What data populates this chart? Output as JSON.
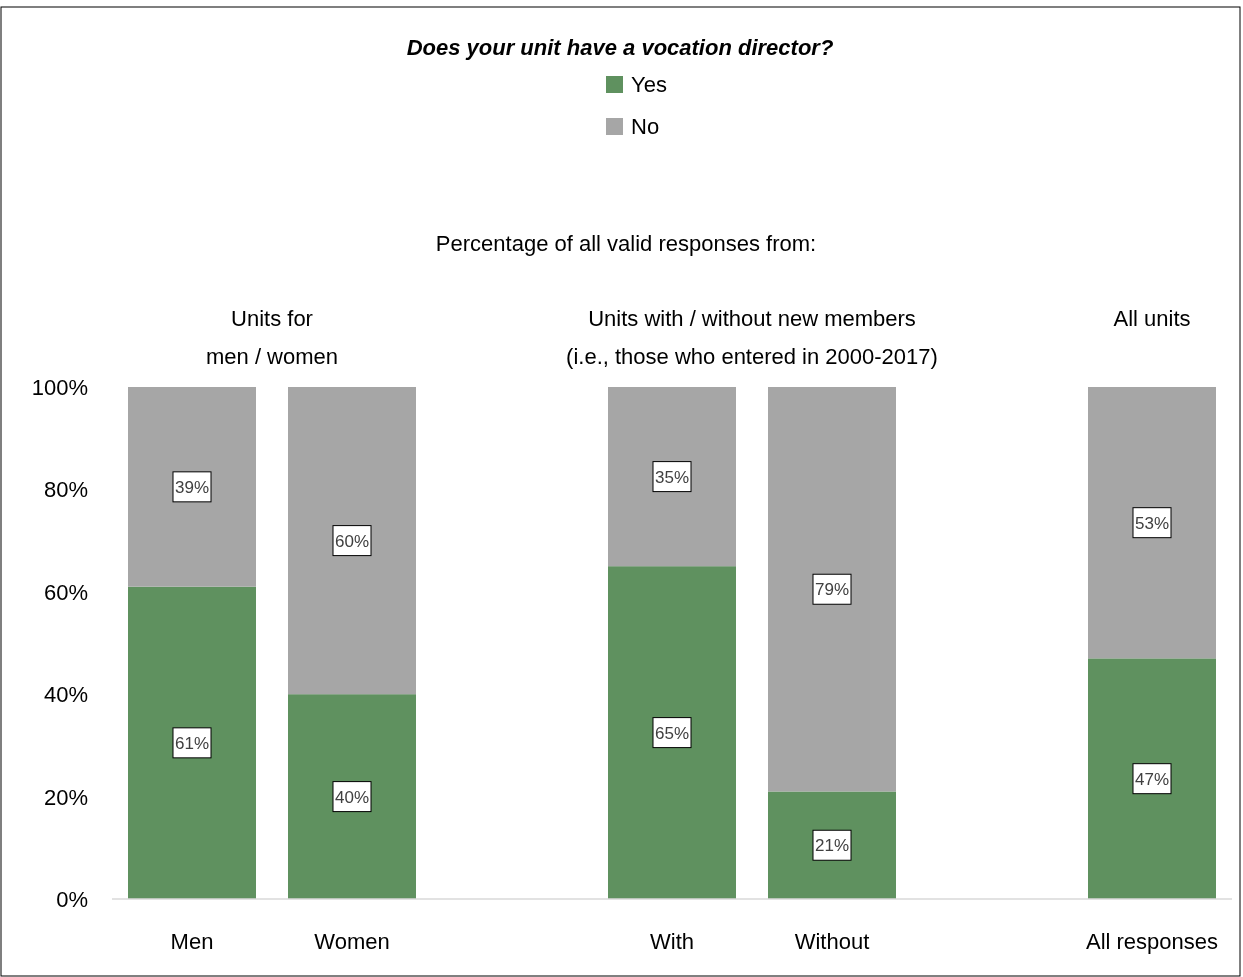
{
  "chart_data": {
    "type": "bar",
    "stacked": true,
    "title": "Does your unit have a vocation director?",
    "subtitle": "Percentage of all valid responses from:",
    "annotations": [
      "Units for\nmen / women",
      "Units with / without new members\n(i.e., those who entered in 2000-2017)",
      "All units"
    ],
    "categories": [
      "Men",
      "Women",
      null,
      "With",
      "Without",
      null,
      "All responses"
    ],
    "series": [
      {
        "name": "Yes",
        "color": "#5f915f",
        "values": [
          61,
          40,
          null,
          65,
          21,
          null,
          47
        ],
        "value_labels": [
          "61%",
          "40%",
          null,
          "65%",
          "21%",
          null,
          "47%"
        ]
      },
      {
        "name": "No",
        "color": "#a6a6a6",
        "values": [
          39,
          60,
          null,
          35,
          79,
          null,
          53
        ],
        "value_labels": [
          "39%",
          "60%",
          null,
          "35%",
          "79%",
          null,
          "53%"
        ]
      }
    ],
    "ylim": [
      0,
      100
    ],
    "yticks": [
      {
        "value": 0,
        "label": "0%"
      },
      {
        "value": 20,
        "label": "20%"
      },
      {
        "value": 40,
        "label": "40%"
      },
      {
        "value": 60,
        "label": "60%"
      },
      {
        "value": 80,
        "label": "80%"
      },
      {
        "value": 100,
        "label": "100%"
      }
    ],
    "grid": false,
    "legend": "top"
  }
}
